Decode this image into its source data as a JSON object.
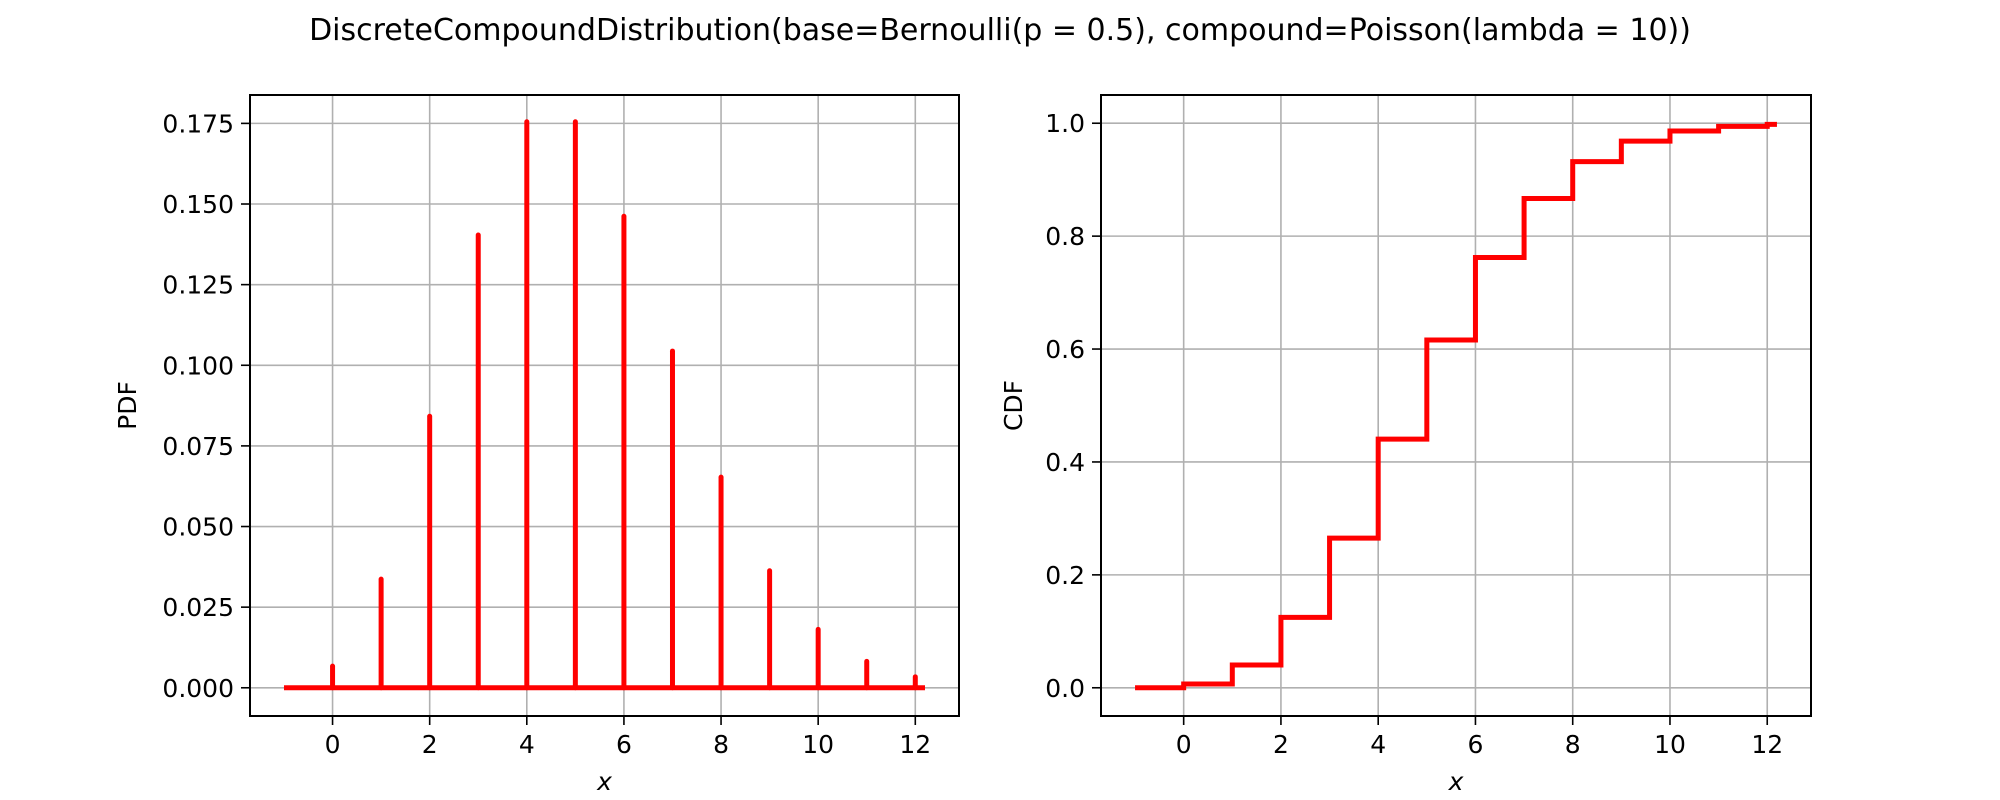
{
  "figure": {
    "title": "DiscreteCompoundDistribution(base=Bernoulli(p = 0.5), compound=Poisson(lambda = 10))"
  },
  "chart_data": [
    {
      "type": "stem",
      "xlabel": "x",
      "ylabel": "PDF",
      "xlim": [
        -1.7,
        12.9
      ],
      "ylim": [
        -0.00875,
        0.1838
      ],
      "xticks": [
        0,
        2,
        4,
        6,
        8,
        10,
        12
      ],
      "xtick_labels": [
        "0",
        "2",
        "4",
        "6",
        "8",
        "10",
        "12"
      ],
      "yticks": [
        0,
        0.025,
        0.05,
        0.075,
        0.1,
        0.125,
        0.15,
        0.175
      ],
      "ytick_labels": [
        "0.000",
        "0.025",
        "0.050",
        "0.075",
        "0.100",
        "0.125",
        "0.150",
        "0.175"
      ],
      "grid": true,
      "color": "#ff0000",
      "baseline": [
        -1,
        12.2
      ],
      "x": [
        0,
        1,
        2,
        3,
        4,
        5,
        6,
        7,
        8,
        9,
        10,
        11,
        12
      ],
      "y": [
        0.0067,
        0.0337,
        0.0842,
        0.1404,
        0.1755,
        0.1755,
        0.1462,
        0.1044,
        0.0653,
        0.0363,
        0.0181,
        0.0082,
        0.0034
      ]
    },
    {
      "type": "step",
      "xlabel": "x",
      "ylabel": "CDF",
      "xlim": [
        -1.7,
        12.9
      ],
      "ylim": [
        -0.05,
        1.05
      ],
      "xticks": [
        0,
        2,
        4,
        6,
        8,
        10,
        12
      ],
      "xtick_labels": [
        "0",
        "2",
        "4",
        "6",
        "8",
        "10",
        "12"
      ],
      "yticks": [
        0,
        0.2,
        0.4,
        0.6,
        0.8,
        1.0
      ],
      "ytick_labels": [
        "0.0",
        "0.2",
        "0.4",
        "0.6",
        "0.8",
        "1.0"
      ],
      "grid": true,
      "color": "#ff0000",
      "x": [
        -1,
        0,
        1,
        2,
        3,
        4,
        5,
        6,
        7,
        8,
        9,
        10,
        11,
        12,
        12.2
      ],
      "y": [
        0,
        0.0067,
        0.0404,
        0.1247,
        0.265,
        0.4405,
        0.616,
        0.7622,
        0.8666,
        0.9319,
        0.9682,
        0.9863,
        0.9945,
        0.998,
        0.998
      ]
    }
  ]
}
